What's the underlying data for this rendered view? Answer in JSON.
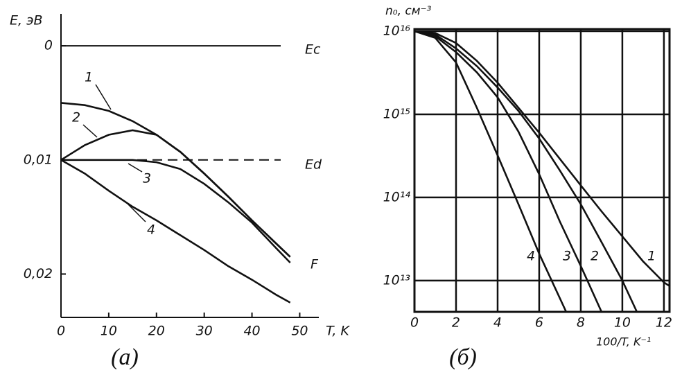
{
  "chart_data": [
    {
      "type": "line",
      "caption": "(а)",
      "x_label": "T, K",
      "y_label": "E, эВ",
      "x": [
        0,
        5,
        10,
        15,
        20,
        25,
        30,
        35,
        40,
        45,
        48
      ],
      "series": [
        {
          "name": "1",
          "color": "#111111",
          "values": [
            0.005,
            0.0052,
            0.0057,
            0.0066,
            0.0078,
            0.0093,
            0.0112,
            0.0132,
            0.0153,
            0.0173,
            0.0185
          ]
        },
        {
          "name": "2",
          "color": "#111111",
          "values": [
            0.01,
            0.0087,
            0.0078,
            0.0074,
            0.0078,
            0.0093,
            0.0112,
            0.0132,
            0.0153,
            0.0173,
            0.0185
          ]
        },
        {
          "name": "3",
          "color": "#111111",
          "values": [
            0.01,
            0.01,
            0.01,
            0.01,
            0.0102,
            0.0108,
            0.0121,
            0.0137,
            0.0155,
            0.0177,
            0.019
          ]
        },
        {
          "name": "4",
          "color": "#111111",
          "values": [
            0.01,
            0.0112,
            0.0127,
            0.0141,
            0.0153,
            0.0166,
            0.0179,
            0.0193,
            0.0205,
            0.0218,
            0.0225
          ]
        }
      ],
      "reference_lines": [
        {
          "label": "Ec",
          "value": 0,
          "style": "solid"
        },
        {
          "label": "Ed",
          "value": 0.01,
          "style": "dashed"
        }
      ],
      "annotation": "F",
      "xlim": [
        0,
        54
      ],
      "xticks": [
        0,
        10,
        20,
        30,
        40,
        50
      ],
      "ylim": [
        -0.0028,
        0.0238
      ],
      "y_inverted": true,
      "yticks": [
        0,
        {
          "value": 0.01,
          "label": "0,01"
        },
        {
          "value": 0.02,
          "label": "0,02"
        }
      ],
      "grid": false
    },
    {
      "type": "line",
      "caption": "(б)",
      "x_label": "100/T, K⁻¹",
      "y_label": "n₀, см⁻³",
      "log_y": true,
      "series": [
        {
          "name": "4",
          "color": "#111111",
          "x": [
            0,
            1,
            2,
            3,
            4,
            5,
            6,
            7.3
          ],
          "values": [
            1e+16,
            8300000000000000.0,
            4200000000000000.0,
            1200000000000000.0,
            320000000000000.0,
            83000000000000.0,
            21000000000000.0,
            4200000000000.0
          ]
        },
        {
          "name": "3",
          "color": "#111111",
          "x": [
            0,
            1,
            2,
            3,
            4,
            5,
            6,
            7,
            8,
            9
          ],
          "values": [
            1e+16,
            8700000000000000.0,
            5600000000000000.0,
            3200000000000000.0,
            1600000000000000.0,
            620000000000000.0,
            190000000000000.0,
            51000000000000.0,
            15000000000000.0,
            4200000000000.0
          ]
        },
        {
          "name": "2",
          "color": "#111111",
          "x": [
            0,
            1,
            2,
            3,
            4,
            5,
            6,
            7,
            8,
            9,
            10,
            10.7
          ],
          "values": [
            1e+16,
            9100000000000000.0,
            6200000000000000.0,
            3800000000000000.0,
            2100000000000000.0,
            1100000000000000.0,
            510000000000000.0,
            210000000000000.0,
            83000000000000.0,
            29000000000000.0,
            10000000000000.0,
            4200000000000.0
          ]
        },
        {
          "name": "1",
          "color": "#111111",
          "x": [
            0,
            1,
            2,
            3,
            4,
            5,
            6,
            7,
            8,
            9,
            10,
            11,
            12,
            12.3
          ],
          "values": [
            1e+16,
            9500000000000000.0,
            7200000000000000.0,
            4400000000000000.0,
            2400000000000000.0,
            1200000000000000.0,
            600000000000000.0,
            290000000000000.0,
            140000000000000.0,
            68000000000000.0,
            34000000000000.0,
            17000000000000.0,
            9500000000000.0,
            8500000000000.0
          ]
        }
      ],
      "xlim": [
        0,
        12.27
      ],
      "xticks": [
        0,
        2,
        4,
        6,
        8,
        10,
        12
      ],
      "ylim": [
        4200000000000.0,
        1.06e+16
      ],
      "yticks": [
        {
          "value": 10000000000000.0,
          "label": "10¹³"
        },
        {
          "value": 100000000000000.0,
          "label": "10¹⁴"
        },
        {
          "value": 1000000000000000.0,
          "label": "10¹⁵"
        },
        {
          "value": 1e+16,
          "label": "10¹⁶"
        }
      ],
      "grid": true
    }
  ]
}
